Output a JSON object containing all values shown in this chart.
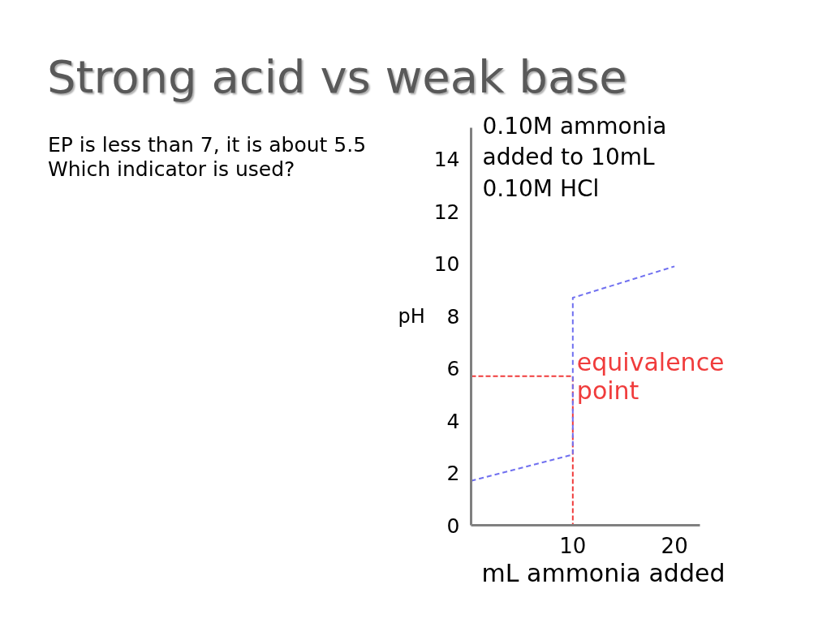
{
  "chart_data": {
    "type": "line",
    "title": "Strong acid vs weak base",
    "subtitle": "EP is less than 7, it is about 5.5\nWhich indicator is used?",
    "xlabel": "mL ammonia added",
    "ylabel": "pH",
    "annotations": [
      "0.10M ammonia\nadded to 10mL\n 0.10M HCl",
      {
        "text": "equivalence\npoint",
        "x": 10,
        "y": 5.7
      }
    ],
    "series": [
      {
        "color": "#f03c3c",
        "x": [
          0,
          10,
          10
        ],
        "values": [
          5.7,
          5.7,
          0
        ]
      },
      {
        "color": "#7070f0",
        "x": [
          0,
          10,
          10,
          20
        ],
        "values": [
          1.7,
          2.7,
          8.7,
          9.9
        ]
      }
    ],
    "xlim": [
      0,
      22.5
    ],
    "ylim": [
      0,
      15.2
    ],
    "xticks": [
      10,
      20
    ],
    "yticks": [
      0,
      2,
      4,
      6,
      8,
      10,
      12,
      14
    ],
    "line_style": "dashed"
  }
}
